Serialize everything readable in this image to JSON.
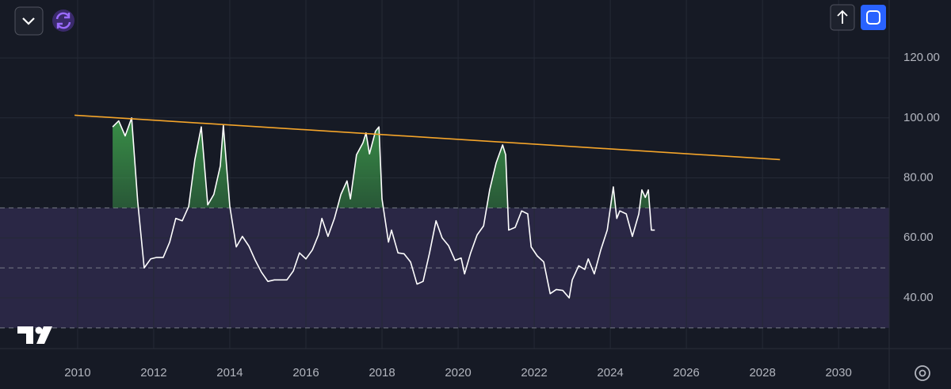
{
  "chart_data": {
    "type": "line",
    "x": [
      2010.92,
      2011.08,
      2011.25,
      2011.42,
      2011.58,
      2011.75,
      2011.92,
      2012.08,
      2012.25,
      2012.42,
      2012.58,
      2012.75,
      2012.92,
      2013.08,
      2013.25,
      2013.42,
      2013.58,
      2013.75,
      2013.83,
      2014.0,
      2014.17,
      2014.33,
      2014.5,
      2014.67,
      2014.83,
      2015.0,
      2015.17,
      2015.33,
      2015.5,
      2015.67,
      2015.83,
      2016.0,
      2016.17,
      2016.33,
      2016.42,
      2016.58,
      2016.75,
      2016.92,
      2017.08,
      2017.17,
      2017.33,
      2017.5,
      2017.58,
      2017.67,
      2017.83,
      2017.92,
      2018.0,
      2018.17,
      2018.25,
      2018.42,
      2018.58,
      2018.75,
      2018.92,
      2019.08,
      2019.25,
      2019.42,
      2019.58,
      2019.75,
      2019.92,
      2020.08,
      2020.17,
      2020.33,
      2020.5,
      2020.67,
      2020.83,
      2021.0,
      2021.17,
      2021.25,
      2021.33,
      2021.5,
      2021.67,
      2021.83,
      2021.92,
      2022.08,
      2022.25,
      2022.42,
      2022.58,
      2022.75,
      2022.92,
      2023.0,
      2023.17,
      2023.33,
      2023.42,
      2023.58,
      2023.75,
      2023.92,
      2024.08,
      2024.17,
      2024.25,
      2024.42,
      2024.58,
      2024.75,
      2024.83,
      2024.92,
      2025.0,
      2025.08,
      2025.17
    ],
    "values": [
      97,
      99,
      94,
      100,
      72,
      50,
      53,
      53.5,
      53.5,
      58.6,
      66.5,
      65.7,
      70.5,
      86,
      97,
      71,
      74.5,
      84,
      97.5,
      70.5,
      57,
      60.5,
      57.3,
      52.5,
      48.6,
      45.5,
      46,
      46,
      46,
      49,
      55,
      53,
      56,
      61,
      66.5,
      60.5,
      66.5,
      74.5,
      79,
      73,
      87.7,
      91.7,
      95,
      88,
      95.6,
      97,
      73,
      58.6,
      62.6,
      55,
      54.7,
      52,
      44.6,
      45.5,
      55,
      65.7,
      60,
      57.4,
      52.5,
      53.3,
      48,
      55,
      61,
      64,
      76,
      85,
      91,
      87.7,
      62.6,
      63.5,
      69,
      68,
      57,
      54,
      52,
      41.4,
      42.8,
      42.5,
      40,
      46,
      50.7,
      49.5,
      53,
      48,
      56,
      62.6,
      77,
      66.5,
      69,
      68,
      60.5,
      68,
      76,
      73.5,
      76,
      62.6,
      62.6
    ],
    "color": "#ffffff",
    "fill_above": 70,
    "fill_color": "#3fa34d",
    "band": [
      30,
      70
    ],
    "band_color": "#2a2745",
    "levels": [
      70,
      50,
      30
    ],
    "trendline": {
      "x": [
        2009.92,
        2028.46
      ],
      "values": [
        100.9,
        86.1
      ],
      "color": "#f5a52a"
    },
    "xlim": [
      2007.96,
      2031.33
    ],
    "ylim": [
      23.1,
      139.3
    ],
    "xticks": [
      2010,
      2012,
      2014,
      2016,
      2018,
      2020,
      2022,
      2024,
      2026,
      2028,
      2030
    ],
    "yticks": [
      {
        "value": 40,
        "label": "40.00"
      },
      {
        "value": 60,
        "label": "60.00"
      },
      {
        "value": 80,
        "label": "80.00"
      },
      {
        "value": 100,
        "label": "100.00"
      },
      {
        "value": 120,
        "label": "120.00"
      }
    ],
    "grid": true
  }
}
